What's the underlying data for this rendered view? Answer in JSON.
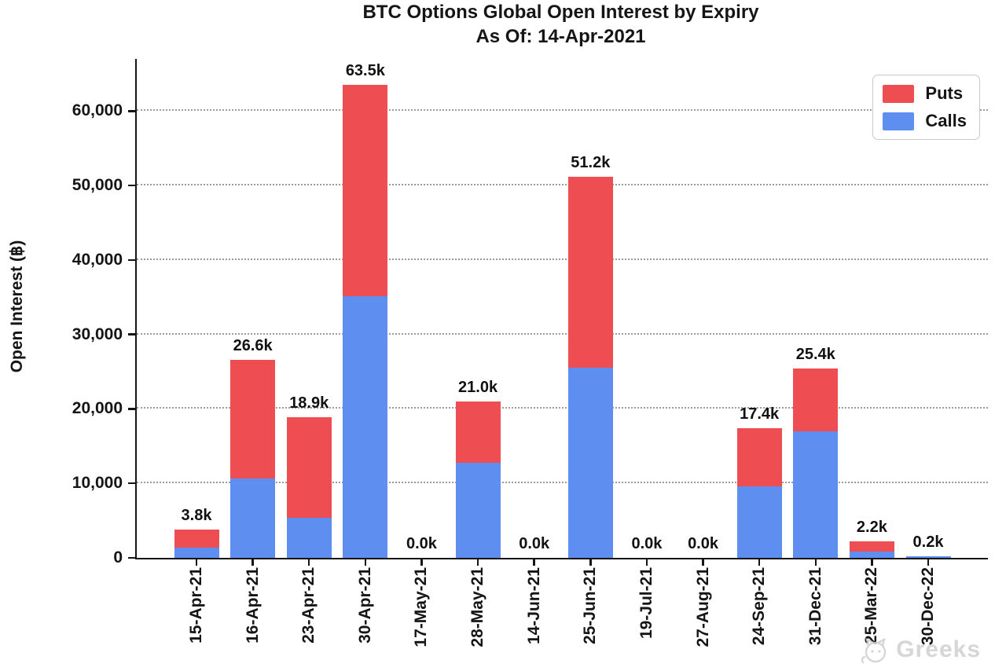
{
  "chart_data": {
    "type": "bar",
    "stacked": true,
    "title": "BTC Options Global Open Interest by Expiry",
    "subtitle": "As Of: 14-Apr-2021",
    "ylabel": "Open Interest (฿)",
    "xlabel": "",
    "categories": [
      "15-Apr-21",
      "16-Apr-21",
      "23-Apr-21",
      "30-Apr-21",
      "17-May-21",
      "28-May-21",
      "14-Jun-21",
      "25-Jun-21",
      "19-Jul-21",
      "27-Aug-21",
      "24-Sep-21",
      "31-Dec-21",
      "25-Mar-22",
      "30-Dec-22"
    ],
    "series": [
      {
        "name": "Calls",
        "color": "#5e8ff0",
        "values": [
          1400,
          10700,
          5400,
          35100,
          0,
          12800,
          0,
          25500,
          0,
          0,
          9600,
          17000,
          800,
          200
        ]
      },
      {
        "name": "Puts",
        "color": "#ee4d52",
        "values": [
          2400,
          15900,
          13500,
          28400,
          0,
          8200,
          0,
          25700,
          0,
          0,
          7800,
          8400,
          1400,
          0
        ]
      }
    ],
    "total_labels": [
      "3.8k",
      "26.6k",
      "18.9k",
      "63.5k",
      "0.0k",
      "21.0k",
      "0.0k",
      "51.2k",
      "0.0k",
      "0.0k",
      "17.4k",
      "25.4k",
      "2.2k",
      "0.2k"
    ],
    "y_ticks": [
      0,
      10000,
      20000,
      30000,
      40000,
      50000,
      60000
    ],
    "y_tick_labels": [
      "0",
      "10,000",
      "20,000",
      "30,000",
      "40,000",
      "50,000",
      "60,000"
    ],
    "ylim": [
      0,
      67000
    ],
    "grid": "horizontal-dotted",
    "legend_position": "top-right",
    "legend": [
      {
        "label": "Puts",
        "color": "#ee4d52"
      },
      {
        "label": "Calls",
        "color": "#5e8ff0"
      }
    ]
  },
  "watermark": {
    "text": "Greeks"
  }
}
